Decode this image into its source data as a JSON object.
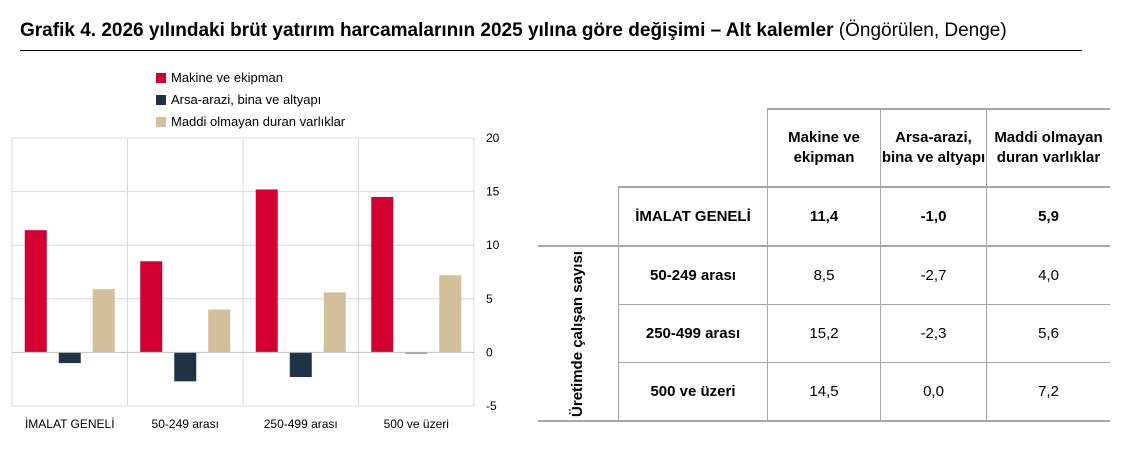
{
  "title": {
    "main": "Grafik 4. 2026 yılındaki brüt yatırım harcamalarının 2025 yılına göre değişimi – Alt kalemler",
    "sub": "(Öngörülen, Denge)"
  },
  "colors": {
    "machinery": "#d50032",
    "land": "#1f3246",
    "intangible": "#d3bf99",
    "grid": "#d9d9d9",
    "table_border": "#a6a6a6"
  },
  "chart_data": {
    "type": "bar",
    "categories": [
      "İMALAT GENELİ",
      "50-249 arası",
      "250-499 arası",
      "500 ve üzeri"
    ],
    "series": [
      {
        "name": "Makine ve ekipman",
        "values": [
          11.4,
          8.5,
          15.2,
          14.5
        ]
      },
      {
        "name": "Arsa-arazi, bina ve altyapı",
        "values": [
          -1.0,
          -2.7,
          -2.3,
          0.0
        ]
      },
      {
        "name": "Maddi olmayan duran varlıklar",
        "values": [
          5.9,
          4.0,
          5.6,
          7.2
        ]
      }
    ],
    "ylim": [
      -5,
      20
    ],
    "yticks": [
      "20",
      "15",
      "10",
      "5",
      "0",
      "-5"
    ],
    "legend_position": "top-left",
    "grid": true
  },
  "table": {
    "headers": [
      "Makine ve ekipman",
      "Arsa-arazi, bina ve altyapı",
      "Maddi olmayan duran varlıklar"
    ],
    "side_label": "Üretimde çalışan sayısı",
    "total": {
      "label": "İMALAT GENELİ",
      "values": [
        "11,4",
        "-1,0",
        "5,9"
      ]
    },
    "rows": [
      {
        "label": "50-249 arası",
        "values": [
          "8,5",
          "-2,7",
          "4,0"
        ]
      },
      {
        "label": "250-499 arası",
        "values": [
          "15,2",
          "-2,3",
          "5,6"
        ]
      },
      {
        "label": "500 ve üzeri",
        "values": [
          "14,5",
          "0,0",
          "7,2"
        ]
      }
    ]
  }
}
